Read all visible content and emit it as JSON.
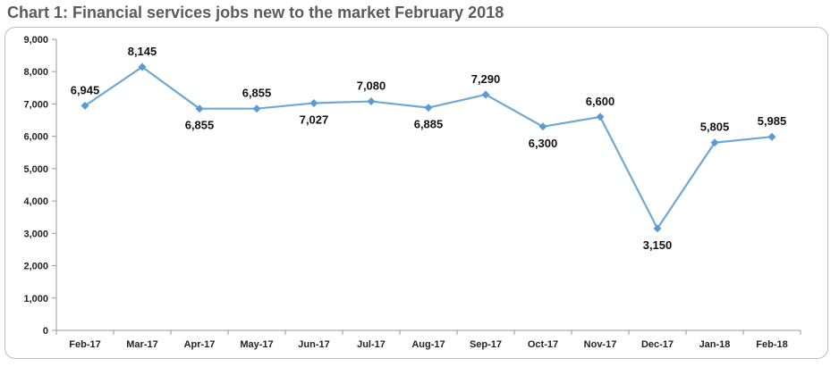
{
  "chart_data": {
    "type": "line",
    "title": "Chart 1: Financial services jobs new to the market February 2018",
    "xlabel": "",
    "ylabel": "",
    "categories": [
      "Feb-17",
      "Mar-17",
      "Apr-17",
      "May-17",
      "Jun-17",
      "Jul-17",
      "Aug-17",
      "Sep-17",
      "Oct-17",
      "Nov-17",
      "Dec-17",
      "Jan-18",
      "Feb-18"
    ],
    "series": [
      {
        "values": [
          6945,
          8145,
          6855,
          6855,
          7027,
          7080,
          6885,
          7290,
          6300,
          6600,
          3150,
          5805,
          5985
        ],
        "data_labels": [
          "6,945",
          "8,145",
          "6,855",
          "6,855",
          "7,027",
          "7,080",
          "6,885",
          "7,290",
          "6,300",
          "6,600",
          "3,150",
          "5,805",
          "5,985"
        ]
      }
    ],
    "ylim": [
      0,
      9000
    ],
    "yticks": [
      0,
      1000,
      2000,
      3000,
      4000,
      5000,
      6000,
      7000,
      8000,
      9000
    ],
    "ytick_labels": [
      "0",
      "1,000",
      "2,000",
      "3,000",
      "4,000",
      "5,000",
      "6,000",
      "7,000",
      "8,000",
      "9,000"
    ],
    "grid": false,
    "legend": "none",
    "colors": {
      "line": "#6fa8d2",
      "marker": "#5b9bd5",
      "axis": "#999999"
    }
  }
}
